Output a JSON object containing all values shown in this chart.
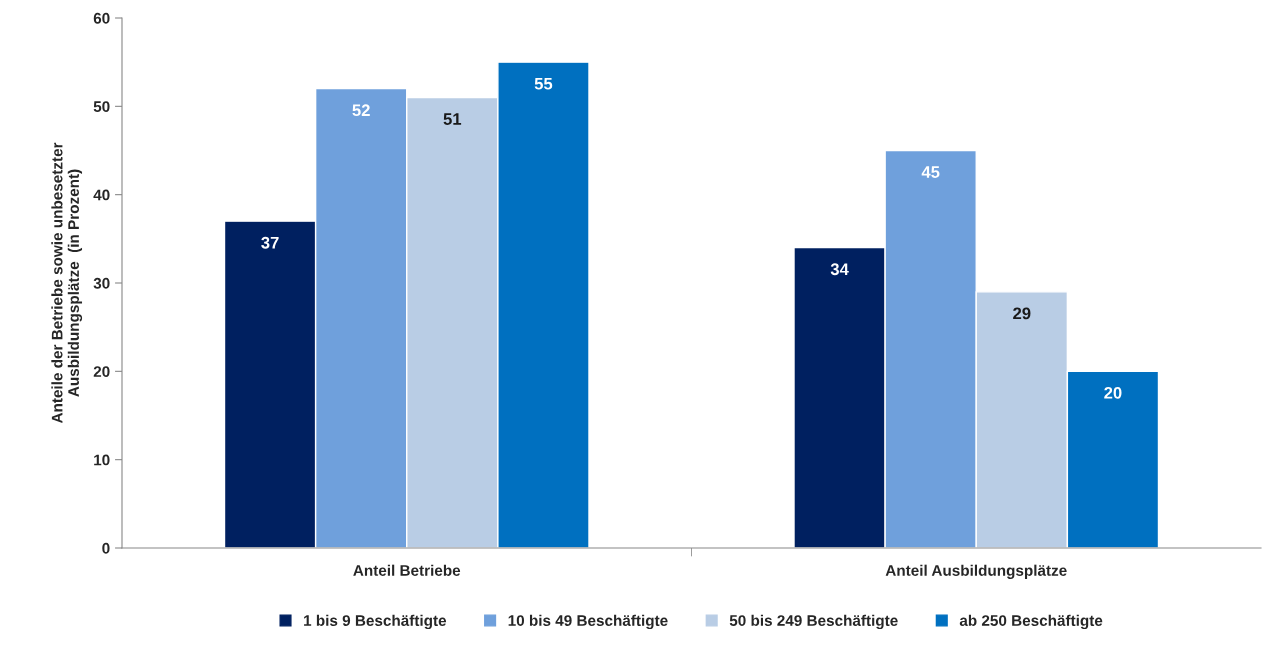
{
  "chart_data": {
    "type": "bar",
    "ylabel": "Anteile der Betriebe sowie unbesetzter\nAusbildungsplätze  (in Prozent)",
    "categories": [
      "Anteil Betriebe",
      "Anteil Ausbildungsplätze"
    ],
    "series": [
      {
        "name": "1 bis 9 Beschäftigte",
        "color": "#002060",
        "values": [
          37,
          34
        ]
      },
      {
        "name": "10 bis 49 Beschäftigte",
        "color": "#6fa0dc",
        "values": [
          52,
          45
        ]
      },
      {
        "name": "50 bis 249 Beschäftigte",
        "color": "#b9cde5",
        "values": [
          51,
          29
        ]
      },
      {
        "name": "ab 250 Beschäftigte",
        "color": "#0070c0",
        "values": [
          55,
          20
        ]
      }
    ],
    "ylim": [
      0,
      60
    ],
    "yticks": [
      0,
      10,
      20,
      30,
      40,
      50,
      60
    ],
    "grid": false,
    "legend": "bottom",
    "data_labels": true
  }
}
